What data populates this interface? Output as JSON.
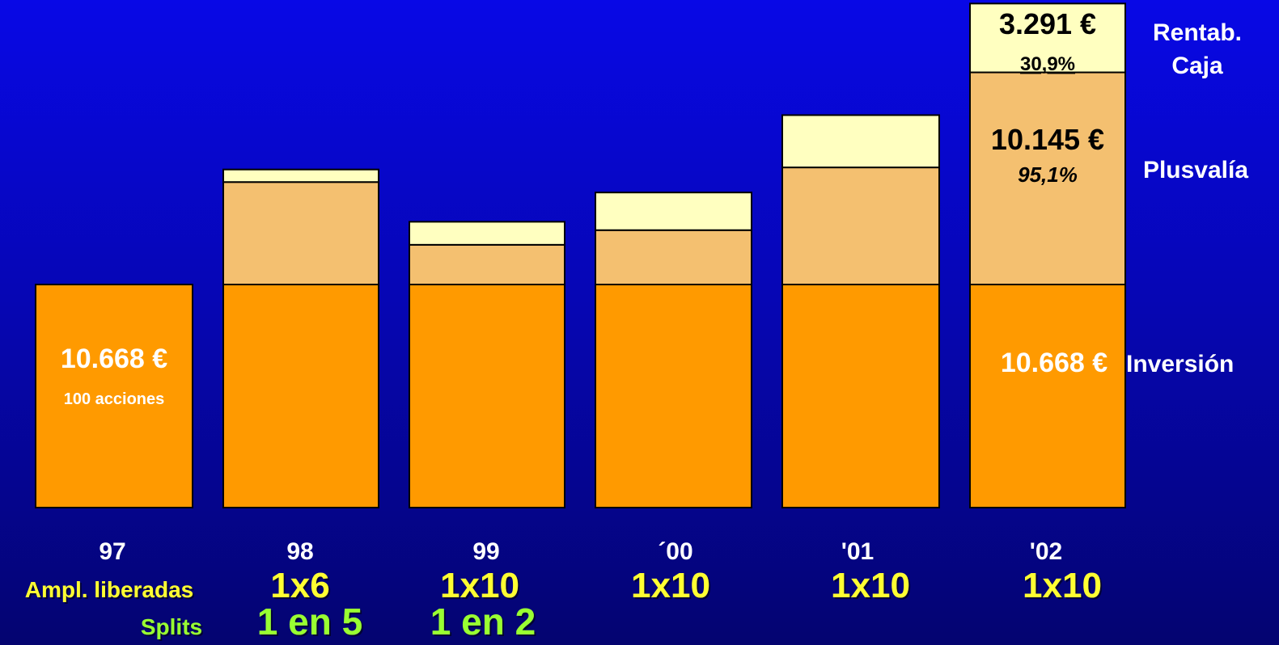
{
  "chart_data": {
    "type": "bar",
    "stacked": true,
    "categories": [
      "97",
      "98",
      "99",
      "´00",
      "'01",
      "'02"
    ],
    "ylim": [
      0,
      25000
    ],
    "series": [
      {
        "name": "Inversión",
        "color": "#ff9a00",
        "values": [
          10668,
          10668,
          10668,
          10668,
          10668,
          10668
        ]
      },
      {
        "name": "Plusvalía",
        "color": "#f4c070",
        "values": [
          0,
          4900,
          1900,
          2600,
          5600,
          10145
        ]
      },
      {
        "name": "Rentab. Caja",
        "color": "#ffffc0",
        "values": [
          0,
          600,
          1100,
          1800,
          2500,
          3291
        ]
      }
    ],
    "inner_labels": {
      "first_value": "10.668 €",
      "first_sub": "100 acciones",
      "last_inversion": "10.668 €",
      "last_plusvalia_value": "10.145 €",
      "last_plusvalia_pct": "95,1%",
      "last_caja_value": "3.291 €",
      "last_caja_pct": "30,9%"
    },
    "legend_labels": {
      "caja_line1": "Rentab.",
      "caja_line2": "Caja",
      "plusvalia": "Plusvalía",
      "inversion": "Inversión"
    },
    "rows": {
      "ampl_label": "Ampl. liberadas",
      "ampl_values": [
        "",
        "1x6",
        "1x10",
        "1x10",
        "1x10",
        "1x10"
      ],
      "splits_label": "Splits",
      "splits_values": [
        "",
        "1 en 5",
        "1 en 2",
        "",
        "",
        ""
      ]
    },
    "colors": {
      "year_text": "#ffffff",
      "ampl_text": "#ffff33",
      "splits_text": "#99ff33",
      "ampl_label_text": "#ffff33",
      "splits_label_text": "#99ff33"
    }
  }
}
